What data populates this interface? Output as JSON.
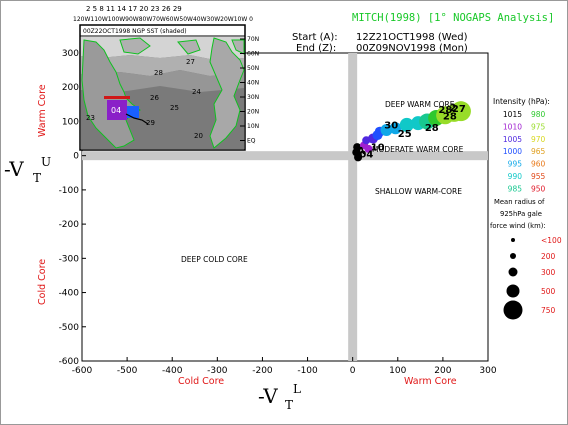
{
  "header": {
    "title": "MITCH(1998)  [1° NOGAPS Analysis]",
    "start_label": "Start (A):",
    "start_value": "12Z21OCT1998 (Wed)",
    "end_label": "End  (Z):",
    "end_value": "00Z09NOV1998 (Mon)"
  },
  "axes": {
    "x_left_label": "Cold Core",
    "x_right_label": "Warm Core",
    "y_top_label": "Warm Core",
    "y_bottom_label": "Cold Core",
    "x_big_label": "-V",
    "x_big_sub": "T",
    "x_big_sup": "L",
    "y_big_label": "-V",
    "y_big_sub": "T",
    "y_big_sup": "U"
  },
  "regions": {
    "deep_warm": "DEEP WARM CORE",
    "moderate_warm": "MODERATE WARM CORE",
    "shallow_warm": "SHALLOW WARM-CORE",
    "deep_cold": "DEEP COLD CORE"
  },
  "inset": {
    "title": "00Z22OCT1998 NGP SST (shaded)",
    "storm_label": "04",
    "lat_labels": [
      "70N",
      "60N",
      "50N",
      "40N",
      "30N",
      "20N",
      "10N",
      "EQ"
    ],
    "sst_values": [
      "28",
      "27",
      "26",
      "25",
      "24",
      "23",
      "20",
      "29"
    ],
    "top_lon_labels": "2  5  8  11  14  17  20  23  26  29",
    "top_lon_row2": "120W110W100W90W80W70W60W50W40W30W20W10W 0"
  },
  "legend": {
    "intensity_title": "Intensity (hPa):",
    "intensity": [
      {
        "left": "1015",
        "left_color": "#000000",
        "right": "980",
        "right_color": "#2ec82e"
      },
      {
        "left": "1010",
        "left_color": "#a020d0",
        "right": "975",
        "right_color": "#98dc28"
      },
      {
        "left": "1005",
        "left_color": "#5028e0",
        "right": "970",
        "right_color": "#d8d820"
      },
      {
        "left": "1000",
        "left_color": "#2050ff",
        "right": "965",
        "right_color": "#e0a020"
      },
      {
        "left": "995",
        "left_color": "#10a8e8",
        "right": "960",
        "right_color": "#e87818"
      },
      {
        "left": "990",
        "left_color": "#10c8c8",
        "right": "955",
        "right_color": "#e04818"
      },
      {
        "left": "985",
        "left_color": "#18c890",
        "right": "950",
        "right_color": "#e01828"
      }
    ],
    "radius_title_1": "Mean radius of",
    "radius_title_2": "925hPa gale",
    "radius_title_3": "force wind (km):",
    "radius": [
      "<100",
      "200",
      "300",
      "500",
      "750"
    ]
  },
  "chart_data": {
    "type": "scatter",
    "title": "MITCH(1998)  [1° NOGAPS Analysis]",
    "xlabel": "-VTL",
    "ylabel": "-VTU",
    "xlim": [
      -600,
      300
    ],
    "ylim": [
      -600,
      300
    ],
    "x_ticks": [
      -600,
      -500,
      -400,
      -300,
      -200,
      -100,
      0,
      100,
      200,
      300
    ],
    "y_ticks": [
      -600,
      -500,
      -400,
      -300,
      -200,
      -100,
      0,
      100,
      200,
      300
    ],
    "grid": false,
    "track_labels": [
      {
        "text": "A",
        "x": 10,
        "y": 5
      },
      {
        "text": "04",
        "x": 15,
        "y": -5
      },
      {
        "text": "10",
        "x": 40,
        "y": 15
      },
      {
        "text": "25",
        "x": 100,
        "y": 55
      },
      {
        "text": "28",
        "x": 160,
        "y": 72
      },
      {
        "text": "28",
        "x": 200,
        "y": 105
      },
      {
        "text": "28",
        "x": 190,
        "y": 125
      },
      {
        "text": "27",
        "x": 220,
        "y": 128
      },
      {
        "text": "30",
        "x": 70,
        "y": 80
      },
      {
        "text": "2",
        "x": 215,
        "y": 130
      }
    ],
    "points": [
      {
        "x": 8,
        "y": 10,
        "c": "#000000",
        "r": 4
      },
      {
        "x": 12,
        "y": -5,
        "c": "#000000",
        "r": 4
      },
      {
        "x": 10,
        "y": 25,
        "c": "#000000",
        "r": 4
      },
      {
        "x": 25,
        "y": 30,
        "c": "#a020d0",
        "r": 4
      },
      {
        "x": 35,
        "y": 20,
        "c": "#a020d0",
        "r": 4
      },
      {
        "x": 30,
        "y": 45,
        "c": "#5028e0",
        "r": 4
      },
      {
        "x": 45,
        "y": 50,
        "c": "#5028e0",
        "r": 5
      },
      {
        "x": 55,
        "y": 60,
        "c": "#2050ff",
        "r": 5
      },
      {
        "x": 60,
        "y": 70,
        "c": "#2050ff",
        "r": 5
      },
      {
        "x": 75,
        "y": 75,
        "c": "#10a8e8",
        "r": 6
      },
      {
        "x": 95,
        "y": 80,
        "c": "#10a8e8",
        "r": 6
      },
      {
        "x": 120,
        "y": 90,
        "c": "#10c8c8",
        "r": 7
      },
      {
        "x": 145,
        "y": 95,
        "c": "#10c8c8",
        "r": 7
      },
      {
        "x": 165,
        "y": 100,
        "c": "#18c890",
        "r": 8
      },
      {
        "x": 185,
        "y": 110,
        "c": "#2ec82e",
        "r": 8
      },
      {
        "x": 205,
        "y": 118,
        "c": "#98dc28",
        "r": 9
      },
      {
        "x": 225,
        "y": 125,
        "c": "#98dc28",
        "r": 9
      },
      {
        "x": 240,
        "y": 130,
        "c": "#98dc28",
        "r": 10
      }
    ]
  }
}
